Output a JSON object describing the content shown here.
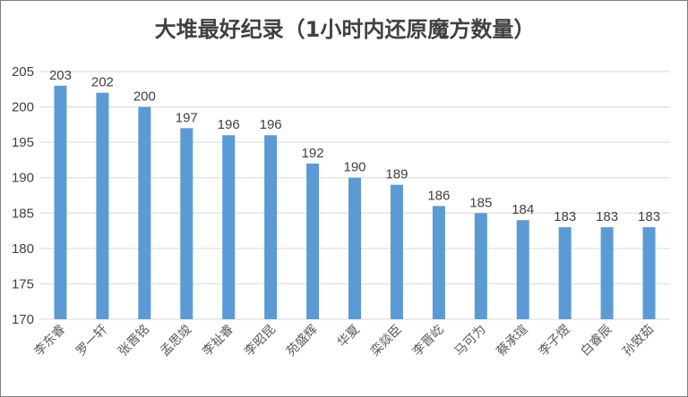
{
  "chart_data": {
    "type": "bar",
    "title": "大堆最好纪录（1小时内还原魔方数量）",
    "xlabel": "",
    "ylabel": "",
    "categories": [
      "李东睿",
      "罗一轩",
      "张晋铭",
      "孟思竣",
      "李祉睿",
      "李昭昆",
      "苑盛辉",
      "华夏",
      "栾燚臣",
      "李晋屹",
      "马可为",
      "蔡承瑄",
      "李子熤",
      "白睿辰",
      "孙致茹"
    ],
    "values": [
      203,
      202,
      200,
      197,
      196,
      196,
      192,
      190,
      189,
      186,
      185,
      184,
      183,
      183,
      183
    ],
    "ylim": [
      170,
      205
    ],
    "yticks": [
      170,
      175,
      180,
      185,
      190,
      195,
      200,
      205
    ],
    "grid": true,
    "legend": "none",
    "bar_color": "#5B9BD5",
    "grid_color": "#D9D9D9"
  }
}
